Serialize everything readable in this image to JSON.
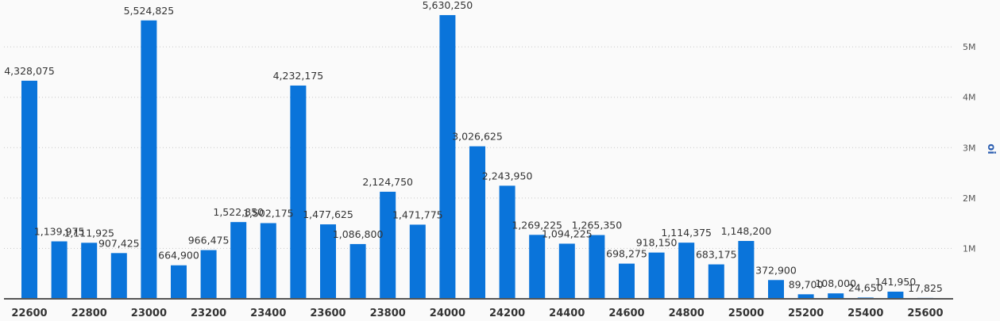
{
  "chart_data": {
    "type": "bar",
    "y_label": "oi",
    "categories": [
      "22600",
      null,
      "22800",
      null,
      "23000",
      null,
      "23200",
      null,
      "23400",
      null,
      "23600",
      null,
      "23800",
      null,
      "24000",
      null,
      "24200",
      null,
      "24400",
      null,
      "24600",
      null,
      "24800",
      null,
      "25000",
      null,
      "25200",
      null,
      "25400",
      null,
      "25600"
    ],
    "values": [
      4328075,
      1139975,
      1111925,
      907425,
      5524825,
      664900,
      966475,
      1522850,
      1502175,
      4232175,
      1477625,
      1086800,
      2124750,
      1471775,
      5630250,
      3026625,
      2243950,
      1269225,
      1094225,
      1265350,
      698275,
      918150,
      1114375,
      683175,
      1148200,
      372900,
      89700,
      108000,
      24650,
      141950,
      17825
    ],
    "value_labels": [
      "4,328,075",
      "1,139,975",
      "1,111,925",
      "907,425",
      "5,524,825",
      "664,900",
      "966,475",
      "1,522,850",
      "1,502,175",
      "4,232,175",
      "1,477,625",
      "1,086,800",
      "2,124,750",
      "1,471,775",
      "5,630,250",
      "3,026,625",
      "2,243,950",
      "1,269,225",
      "1,094,225",
      "1,265,350",
      "698,275",
      "918,150",
      "1,114,375",
      "683,175",
      "1,148,200",
      "372,900",
      "89,700",
      "108,000",
      "24,650",
      "141,950",
      "17,825"
    ],
    "color": "#0a74da",
    "ylim": [
      0,
      5930000
    ],
    "yticks": [
      {
        "value": 1000000,
        "label": "1M"
      },
      {
        "value": 2000000,
        "label": "2M"
      },
      {
        "value": 3000000,
        "label": "3M"
      },
      {
        "value": 4000000,
        "label": "4M"
      },
      {
        "value": 5000000,
        "label": "5M"
      }
    ],
    "y_axis_side": "right",
    "grid": true
  }
}
